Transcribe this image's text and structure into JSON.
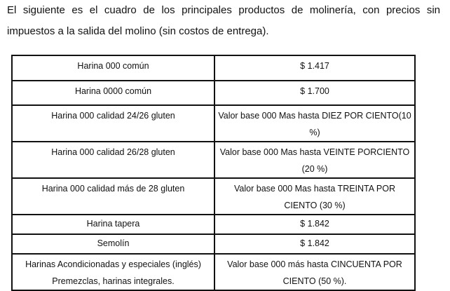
{
  "intro": "El siguiente es el cuadro de los principales productos de molinería, con precios sin impuestos a la salida del molino (sin costos de entrega).",
  "table": {
    "rows": [
      {
        "product": "Harina 000 común",
        "price": "$ 1.417"
      },
      {
        "product": "Harina 0000 común",
        "price": "$ 1.700"
      },
      {
        "product": "Harina 000 calidad 24/26 gluten",
        "price": "Valor base 000 Mas hasta DIEZ POR CIENTO(10 %)"
      },
      {
        "product": "Harina 000 calidad 26/28 gluten",
        "price": "Valor base 000 Mas hasta VEINTE PORCIENTO (20 %)"
      },
      {
        "product": "Harina 000 calidad más de 28 gluten",
        "price": "Valor base 000 Mas hasta TREINTA POR CIENTO (30 %)"
      },
      {
        "product": "Harina tapera",
        "price": "$ 1.842"
      },
      {
        "product": "Semolín",
        "price": "$ 1.842"
      },
      {
        "product": "Harinas Acondicionadas y especiales (inglés) Premezclas, harinas integrales.",
        "price": "Valor base 000 más hasta CINCUENTA POR CIENTO (50 %)."
      }
    ]
  }
}
